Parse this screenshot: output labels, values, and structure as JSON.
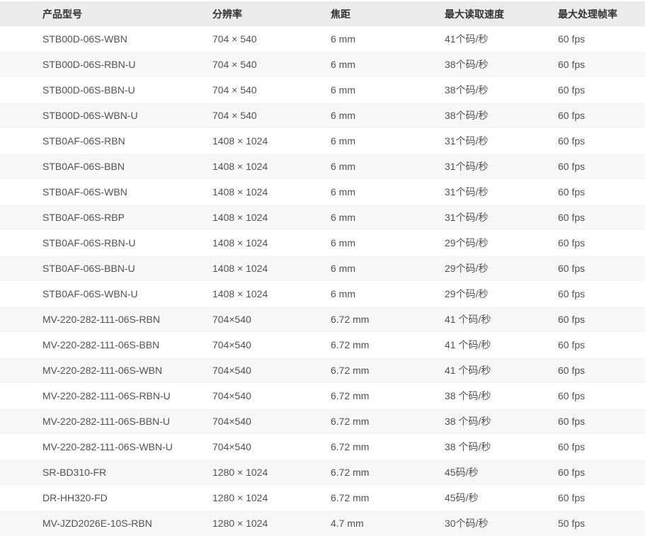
{
  "colors": {
    "header_bg": "#ececec",
    "header_text": "#333333",
    "row_bg": "#ffffff",
    "row_alt_bg": "#f7f7f7",
    "body_text": "#525252",
    "page_bg": "#ffffff"
  },
  "table": {
    "columns": [
      {
        "key": "model",
        "label": "产品型号"
      },
      {
        "key": "resolution",
        "label": "分辨率"
      },
      {
        "key": "focal",
        "label": "焦距"
      },
      {
        "key": "speed",
        "label": "最大读取速度"
      },
      {
        "key": "fps",
        "label": "最大处理帧率"
      }
    ],
    "rows": [
      [
        "STB00D-06S-WBN",
        "704 × 540",
        "6 mm",
        "41个码/秒",
        "60 fps"
      ],
      [
        "STB00D-06S-RBN-U",
        "704 × 540",
        "6 mm",
        "38个码/秒",
        "60 fps"
      ],
      [
        "STB00D-06S-BBN-U",
        "704 × 540",
        "6 mm",
        "38个码/秒",
        "60 fps"
      ],
      [
        "STB00D-06S-WBN-U",
        "704 × 540",
        "6 mm",
        "38个码/秒",
        "60 fps"
      ],
      [
        "STB0AF-06S-RBN",
        "1408 × 1024",
        "6 mm",
        "31个码/秒",
        "60 fps"
      ],
      [
        "STB0AF-06S-BBN",
        "1408 × 1024",
        "6 mm",
        "31个码/秒",
        "60 fps"
      ],
      [
        "STB0AF-06S-WBN",
        "1408 × 1024",
        "6 mm",
        "31个码/秒",
        "60 fps"
      ],
      [
        "STB0AF-06S-RBP",
        "1408 × 1024",
        "6 mm",
        "31个码/秒",
        "60 fps"
      ],
      [
        "STB0AF-06S-RBN-U",
        "1408 × 1024",
        "6 mm",
        "29个码/秒",
        "60 fps"
      ],
      [
        "STB0AF-06S-BBN-U",
        "1408 × 1024",
        "6 mm",
        "29个码/秒",
        "60 fps"
      ],
      [
        "STB0AF-06S-WBN-U",
        "1408 × 1024",
        "6 mm",
        "29个码/秒",
        "60 fps"
      ],
      [
        "MV-220-282-111-06S-RBN",
        "704×540",
        "6.72 mm",
        "41 个码/秒",
        "60 fps"
      ],
      [
        "MV-220-282-111-06S-BBN",
        "704×540",
        "6.72 mm",
        "41 个码/秒",
        "60 fps"
      ],
      [
        "MV-220-282-111-06S-WBN",
        "704×540",
        "6.72 mm",
        "41 个码/秒",
        "60 fps"
      ],
      [
        "MV-220-282-111-06S-RBN-U",
        "704×540",
        "6.72 mm",
        "38 个码/秒",
        "60 fps"
      ],
      [
        "MV-220-282-111-06S-BBN-U",
        "704×540",
        "6.72 mm",
        "38 个码/秒",
        "60 fps"
      ],
      [
        "MV-220-282-111-06S-WBN-U",
        "704×540",
        "6.72 mm",
        "38 个码/秒",
        "60 fps"
      ],
      [
        "SR-BD310-FR",
        "1280 × 1024",
        "6.72 mm",
        "45码/秒",
        "60 fps"
      ],
      [
        "DR-HH320-FD",
        "1280 × 1024",
        "6.72 mm",
        "45码/秒",
        "60 fps"
      ],
      [
        "MV-JZD2026E-10S-RBN",
        "1280 × 1024",
        "4.7 mm",
        "30个码/秒",
        "50 fps"
      ]
    ]
  }
}
